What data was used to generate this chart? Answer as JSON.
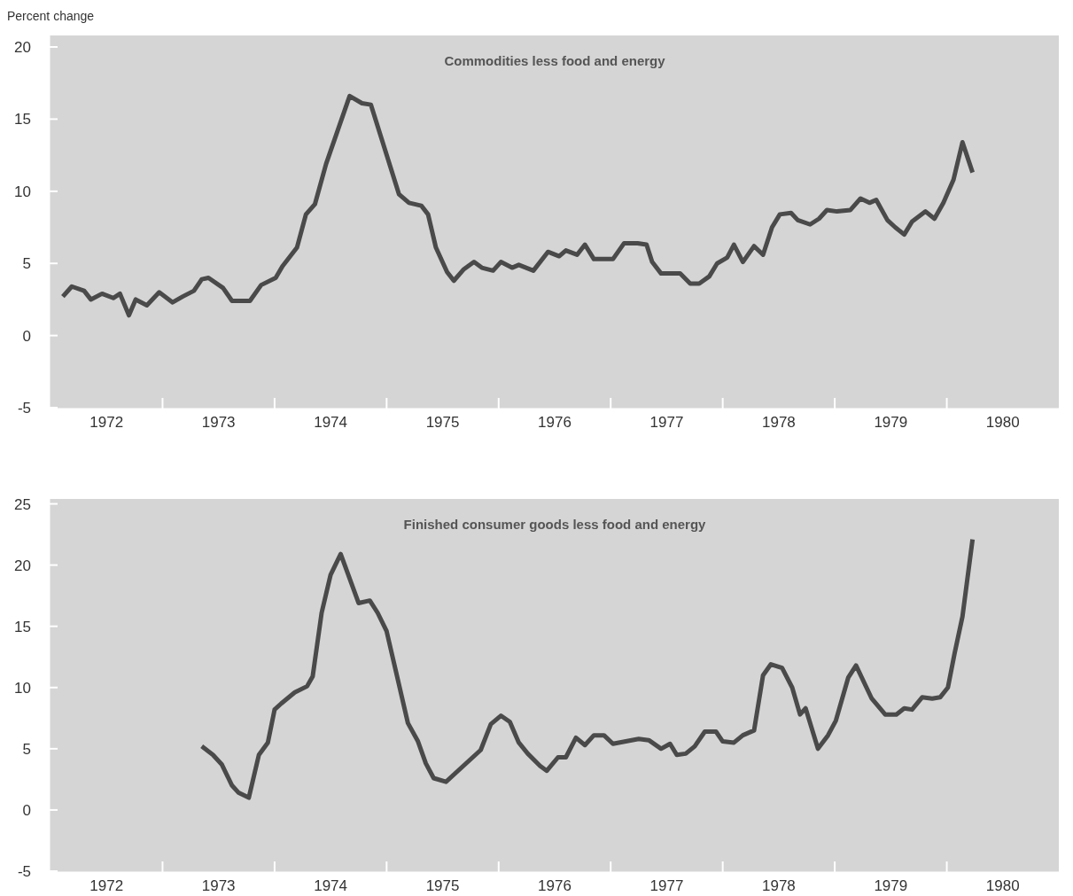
{
  "chart_data": [
    {
      "type": "line",
      "title": "Commodities less food and energy",
      "ylabel": "Percent change",
      "xlim": [
        1972,
        1981
      ],
      "xticks": [
        {
          "value": 1972.5,
          "label": "1972"
        },
        {
          "value": 1973,
          "label": null
        },
        {
          "value": 1973.5,
          "label": "1973"
        },
        {
          "value": 1974,
          "label": null
        },
        {
          "value": 1974.5,
          "label": "1974"
        },
        {
          "value": 1975,
          "label": null
        },
        {
          "value": 1975.5,
          "label": "1975"
        },
        {
          "value": 1976,
          "label": null
        },
        {
          "value": 1976.5,
          "label": "1976"
        },
        {
          "value": 1977,
          "label": null
        },
        {
          "value": 1977.5,
          "label": "1977"
        },
        {
          "value": 1978,
          "label": null
        },
        {
          "value": 1978.5,
          "label": "1978"
        },
        {
          "value": 1979,
          "label": null
        },
        {
          "value": 1979.5,
          "label": "1979"
        },
        {
          "value": 1980,
          "label": null
        },
        {
          "value": 1980.5,
          "label": "1980"
        }
      ],
      "ylim": [
        -5,
        20.8
      ],
      "yticks": [
        -5,
        0,
        5,
        10,
        15,
        20
      ],
      "series": [
        {
          "color": "#4a4a4a",
          "x": [
            1972.11,
            1972.19,
            1972.3,
            1972.36,
            1972.46,
            1972.56,
            1972.62,
            1972.7,
            1972.76,
            1972.86,
            1972.97,
            1973.09,
            1973.18,
            1973.28,
            1973.35,
            1973.41,
            1973.54,
            1973.62,
            1973.78,
            1973.88,
            1974.01,
            1974.07,
            1974.2,
            1974.28,
            1974.36,
            1974.46,
            1974.67,
            1974.78,
            1974.86,
            1975.11,
            1975.2,
            1975.31,
            1975.37,
            1975.44,
            1975.54,
            1975.6,
            1975.69,
            1975.78,
            1975.85,
            1975.95,
            1976.02,
            1976.12,
            1976.18,
            1976.31,
            1976.44,
            1976.54,
            1976.6,
            1976.7,
            1976.77,
            1976.85,
            1977.02,
            1977.12,
            1977.24,
            1977.32,
            1977.37,
            1977.45,
            1977.62,
            1977.71,
            1977.79,
            1977.88,
            1977.95,
            1978.04,
            1978.1,
            1978.18,
            1978.28,
            1978.36,
            1978.44,
            1978.51,
            1978.61,
            1978.67,
            1978.78,
            1978.86,
            1978.93,
            1979.02,
            1979.14,
            1979.23,
            1979.31,
            1979.37,
            1979.47,
            1979.54,
            1979.62,
            1979.69,
            1979.81,
            1979.89,
            1979.97,
            1980.06,
            1980.14,
            1980.23
          ],
          "values": [
            2.7,
            3.4,
            3.1,
            2.5,
            2.9,
            2.6,
            2.9,
            1.4,
            2.5,
            2.1,
            3.0,
            2.3,
            2.7,
            3.1,
            3.9,
            4.0,
            3.3,
            2.4,
            2.4,
            3.5,
            4.0,
            4.8,
            6.1,
            8.4,
            9.1,
            11.9,
            16.6,
            16.1,
            16.0,
            9.8,
            9.2,
            9.0,
            8.4,
            6.1,
            4.4,
            3.8,
            4.6,
            5.1,
            4.7,
            4.5,
            5.1,
            4.7,
            4.9,
            4.5,
            5.8,
            5.5,
            5.9,
            5.6,
            6.3,
            5.3,
            5.3,
            6.4,
            6.4,
            6.3,
            5.1,
            4.3,
            4.3,
            3.6,
            3.6,
            4.1,
            5.0,
            5.4,
            6.3,
            5.1,
            6.2,
            5.6,
            7.5,
            8.4,
            8.5,
            8.0,
            7.7,
            8.1,
            8.7,
            8.6,
            8.7,
            9.5,
            9.2,
            9.4,
            8.0,
            7.5,
            7.0,
            7.9,
            8.6,
            8.1,
            9.2,
            10.8,
            13.4,
            11.3
          ]
        }
      ]
    },
    {
      "type": "line",
      "title": "Finished consumer goods less food and energy",
      "xlim": [
        1972,
        1981
      ],
      "xticks": [
        {
          "value": 1972.5,
          "label": "1972"
        },
        {
          "value": 1973,
          "label": null
        },
        {
          "value": 1973.5,
          "label": "1973"
        },
        {
          "value": 1974,
          "label": null
        },
        {
          "value": 1974.5,
          "label": "1974"
        },
        {
          "value": 1975,
          "label": null
        },
        {
          "value": 1975.5,
          "label": "1975"
        },
        {
          "value": 1976,
          "label": null
        },
        {
          "value": 1976.5,
          "label": "1976"
        },
        {
          "value": 1977,
          "label": null
        },
        {
          "value": 1977.5,
          "label": "1977"
        },
        {
          "value": 1978,
          "label": null
        },
        {
          "value": 1978.5,
          "label": "1978"
        },
        {
          "value": 1979,
          "label": null
        },
        {
          "value": 1979.5,
          "label": "1979"
        },
        {
          "value": 1980,
          "label": null
        },
        {
          "value": 1980.5,
          "label": "1980"
        }
      ],
      "ylim": [
        -5,
        25.4
      ],
      "yticks": [
        -5,
        0,
        5,
        10,
        15,
        20,
        25
      ],
      "series": [
        {
          "color": "#4a4a4a",
          "x": [
            1973.35,
            1973.45,
            1973.53,
            1973.62,
            1973.68,
            1973.77,
            1973.86,
            1973.94,
            1974.0,
            1974.06,
            1974.18,
            1974.29,
            1974.34,
            1974.42,
            1974.5,
            1974.59,
            1974.75,
            1974.85,
            1974.92,
            1975.0,
            1975.19,
            1975.28,
            1975.35,
            1975.42,
            1975.53,
            1975.84,
            1975.93,
            1976.02,
            1976.1,
            1976.18,
            1976.26,
            1976.37,
            1976.43,
            1976.53,
            1976.6,
            1976.69,
            1976.77,
            1976.85,
            1976.94,
            1977.02,
            1977.25,
            1977.34,
            1977.45,
            1977.53,
            1977.59,
            1977.67,
            1977.75,
            1977.84,
            1977.94,
            1978.0,
            1978.1,
            1978.18,
            1978.28,
            1978.36,
            1978.43,
            1978.53,
            1978.62,
            1978.69,
            1978.74,
            1978.85,
            1978.94,
            1979.01,
            1979.12,
            1979.19,
            1979.33,
            1979.45,
            1979.55,
            1979.62,
            1979.69,
            1979.78,
            1979.87,
            1979.94,
            1980.01,
            1980.07,
            1980.14,
            1980.23
          ],
          "values": [
            5.2,
            4.5,
            3.7,
            2.0,
            1.4,
            1.0,
            4.5,
            5.5,
            8.2,
            8.7,
            9.6,
            10.1,
            10.9,
            16.1,
            19.2,
            20.9,
            16.9,
            17.1,
            16.1,
            14.6,
            7.1,
            5.6,
            3.8,
            2.6,
            2.3,
            4.9,
            7.0,
            7.7,
            7.2,
            5.5,
            4.6,
            3.6,
            3.2,
            4.3,
            4.3,
            5.9,
            5.3,
            6.1,
            6.1,
            5.4,
            5.8,
            5.7,
            5.0,
            5.4,
            4.5,
            4.6,
            5.2,
            6.4,
            6.4,
            5.6,
            5.5,
            6.1,
            6.5,
            11.0,
            11.9,
            11.6,
            10.0,
            7.8,
            8.3,
            5.0,
            6.1,
            7.3,
            10.8,
            11.8,
            9.1,
            7.8,
            7.8,
            8.3,
            8.2,
            9.2,
            9.1,
            9.2,
            10.0,
            12.8,
            15.8,
            22.1
          ]
        }
      ]
    }
  ]
}
